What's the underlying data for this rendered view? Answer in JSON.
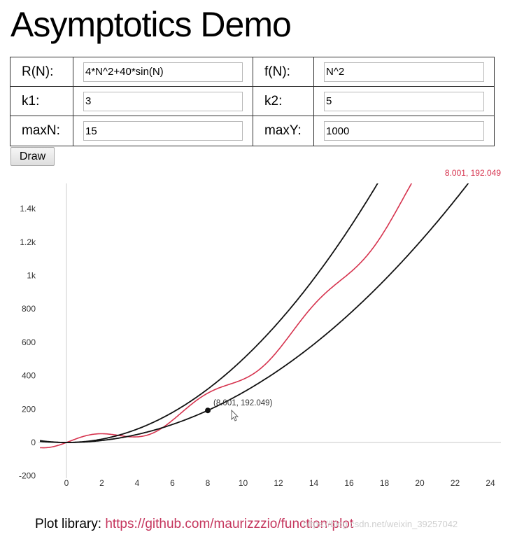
{
  "page": {
    "title": "Asymptotics Demo"
  },
  "form": {
    "rn_label": "R(N):",
    "rn_value": "4*N^2+40*sin(N)",
    "fn_label": "f(N):",
    "fn_value": "N^2",
    "k1_label": "k1:",
    "k1_value": "3",
    "k2_label": "k2:",
    "k2_value": "5",
    "maxn_label": "maxN:",
    "maxn_value": "15",
    "maxy_label": "maxY:",
    "maxy_value": "1000",
    "draw_label": "Draw"
  },
  "plot": {
    "readout": "8.001, 192.049",
    "tooltip": "(8.001, 192.049)",
    "colors": {
      "rn": "#d6334e",
      "bounds": "#111111",
      "readout": "#d6334e"
    }
  },
  "footer": {
    "label": "Plot library:",
    "link": "https://github.com/maurizzzio/function-plot",
    "watermark": "https://blog.csdn.net/weixin_39257042"
  },
  "chart_data": {
    "type": "line",
    "xlim": [
      -1.5,
      24.5
    ],
    "ylim": [
      -200,
      1550
    ],
    "xticks": [
      0,
      2,
      4,
      6,
      8,
      10,
      12,
      14,
      16,
      18,
      20,
      22,
      24
    ],
    "yticks": [
      -200,
      0,
      200,
      400,
      600,
      800,
      1000,
      1200,
      1400
    ],
    "ytick_labels": [
      "-200",
      "0",
      "200",
      "400",
      "600",
      "800",
      "1k",
      "1.2k",
      "1.4k"
    ],
    "series": [
      {
        "expr": "4*N^2+40*sin(N)",
        "color": "#d6334e"
      },
      {
        "expr": "3*N^2",
        "color": "#111111"
      },
      {
        "expr": "5*N^2",
        "color": "#111111"
      }
    ],
    "marker": {
      "x": 8.001,
      "y": 192.049
    }
  }
}
